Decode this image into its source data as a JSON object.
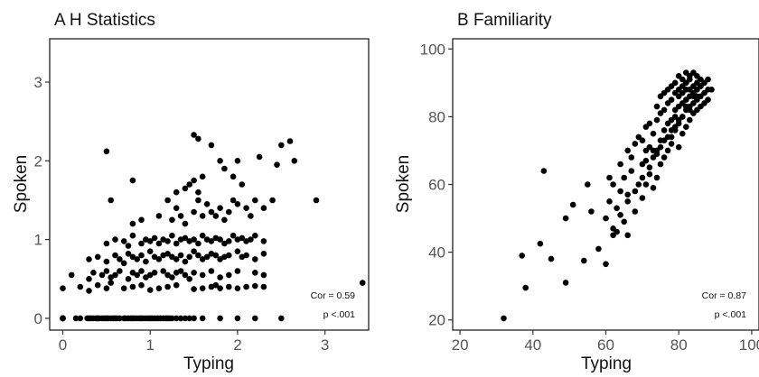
{
  "chart_data": [
    {
      "type": "scatter",
      "title": "A  H Statistics",
      "xlabel": "Typing",
      "ylabel": "Spoken",
      "xlim": [
        -0.15,
        3.5
      ],
      "ylim": [
        -0.15,
        3.55
      ],
      "xticks": [
        "0",
        "1",
        "2",
        "3"
      ],
      "yticks": [
        "0",
        "1",
        "2",
        "3"
      ],
      "grid": false,
      "annotations": [
        "Cor = 0.59",
        "p  <.001"
      ],
      "x": [
        0,
        0,
        0,
        0,
        0,
        0.15,
        0.2,
        0.28,
        0.3,
        0.32,
        0.35,
        0.38,
        0.4,
        0.42,
        0.45,
        0.48,
        0.5,
        0.52,
        0.55,
        0.58,
        0.6,
        0.62,
        0.65,
        0.7,
        0.72,
        0.75,
        0.78,
        0.8,
        0.82,
        0.85,
        0.88,
        0.9,
        0.92,
        0.95,
        0.98,
        1.0,
        1.02,
        1.05,
        1.08,
        1.1,
        1.12,
        1.15,
        1.18,
        1.2,
        1.22,
        1.25,
        1.3,
        1.35,
        1.4,
        1.45,
        1.5,
        1.6,
        1.8,
        2.0,
        2.2,
        2.5,
        0,
        0.2,
        0.3,
        0.4,
        0.5,
        0.55,
        0.7,
        0.8,
        0.9,
        1.0,
        1.1,
        1.2,
        1.3,
        1.5,
        1.6,
        1.7,
        1.75,
        1.8,
        1.9,
        2.0,
        2.1,
        2.2,
        2.3,
        0.1,
        0.3,
        0.35,
        0.45,
        0.5,
        0.55,
        0.6,
        0.65,
        0.75,
        0.8,
        0.85,
        0.9,
        0.95,
        1.0,
        1.05,
        1.15,
        1.2,
        1.25,
        1.3,
        1.35,
        1.4,
        1.45,
        1.5,
        1.6,
        1.7,
        1.8,
        1.9,
        2.0,
        2.2,
        2.3,
        0.3,
        0.4,
        0.5,
        0.6,
        0.65,
        0.7,
        0.75,
        0.8,
        0.85,
        0.9,
        0.95,
        1.0,
        1.05,
        1.1,
        1.15,
        1.2,
        1.25,
        1.3,
        1.35,
        1.4,
        1.45,
        1.5,
        1.55,
        1.6,
        1.65,
        1.7,
        1.75,
        1.8,
        1.85,
        1.9,
        2.0,
        2.05,
        2.1,
        2.2,
        2.3,
        0.5,
        0.6,
        0.7,
        0.75,
        0.8,
        0.9,
        0.95,
        1.0,
        1.05,
        1.1,
        1.15,
        1.2,
        1.25,
        1.3,
        1.35,
        1.4,
        1.45,
        1.5,
        1.55,
        1.6,
        1.65,
        1.7,
        1.75,
        1.8,
        1.85,
        1.9,
        1.95,
        2.0,
        2.05,
        2.1,
        2.15,
        2.2,
        2.3,
        0.55,
        0.8,
        0.9,
        1.1,
        1.2,
        1.25,
        1.3,
        1.35,
        1.4,
        1.5,
        1.55,
        1.6,
        1.65,
        1.7,
        1.75,
        1.8,
        1.85,
        1.9,
        1.95,
        2.0,
        2.1,
        2.15,
        2.2,
        2.3,
        2.4,
        1.3,
        1.4,
        1.45,
        1.5,
        1.55,
        1.6,
        1.7,
        1.8,
        1.85,
        1.95,
        2.0,
        2.05,
        2.25,
        2.5,
        2.6,
        2.65,
        2.9,
        3.43
      ],
      "y": [
        0,
        0,
        0,
        0,
        0,
        0,
        0,
        0,
        0,
        0,
        0,
        0,
        0,
        0,
        0,
        0,
        0,
        0,
        0,
        0,
        0,
        0,
        0,
        0,
        0,
        0,
        0,
        0,
        0,
        0,
        0,
        0,
        0,
        0,
        0,
        0,
        0,
        0,
        0,
        0,
        0,
        0,
        0,
        0,
        0,
        0,
        0,
        0,
        0,
        0,
        0,
        0,
        0,
        0,
        0,
        0,
        0.38,
        0.4,
        0.35,
        0.42,
        0.38,
        0.45,
        0.38,
        0.4,
        0.42,
        0.36,
        0.38,
        0.4,
        0.42,
        0.37,
        0.38,
        0.4,
        0.42,
        0.38,
        0.4,
        0.38,
        0.4,
        0.41,
        0.4,
        0.55,
        0.5,
        0.58,
        0.55,
        0.6,
        0.52,
        0.55,
        0.6,
        0.5,
        0.58,
        0.55,
        0.6,
        0.52,
        0.55,
        0.58,
        0.6,
        0.55,
        0.52,
        0.58,
        0.6,
        0.55,
        0.5,
        0.58,
        0.55,
        0.6,
        0.52,
        0.55,
        0.6,
        0.58,
        0.55,
        0.75,
        0.78,
        0.72,
        0.8,
        0.75,
        0.7,
        0.82,
        0.78,
        0.75,
        0.8,
        0.72,
        0.85,
        0.78,
        0.75,
        0.8,
        0.82,
        0.78,
        0.75,
        0.8,
        0.72,
        0.78,
        0.85,
        0.8,
        0.75,
        0.78,
        0.82,
        0.8,
        0.75,
        0.78,
        0.8,
        0.85,
        0.78,
        0.8,
        0.75,
        0.82,
        0.95,
        1.0,
        0.98,
        0.92,
        1.05,
        0.95,
        1.0,
        0.98,
        1.02,
        0.95,
        1.0,
        0.98,
        1.05,
        0.95,
        1.0,
        1.02,
        0.98,
        1.0,
        0.95,
        1.05,
        1.0,
        0.98,
        1.02,
        1.0,
        0.95,
        0.98,
        1.05,
        1.0,
        1.02,
        0.98,
        1.0,
        1.05,
        0.98,
        1.5,
        1.2,
        1.25,
        1.3,
        1.5,
        1.25,
        1.4,
        1.3,
        1.2,
        1.35,
        1.5,
        1.3,
        1.45,
        1.35,
        1.3,
        1.4,
        1.25,
        1.35,
        1.5,
        1.45,
        1.4,
        1.3,
        1.5,
        1.4,
        1.5,
        1.6,
        1.65,
        1.7,
        1.75,
        1.6,
        1.8,
        2.2,
        2.0,
        1.9,
        1.8,
        2.0,
        1.7,
        2.05,
        2.2,
        2.25,
        2.0,
        1.5,
        0.45
      ],
      "extra_points": {
        "x": [
          0.5,
          1.5,
          1.55,
          0.8,
          2.45
        ],
        "y": [
          2.12,
          2.33,
          2.28,
          1.75,
          1.95
        ]
      }
    },
    {
      "type": "scatter",
      "title": "B  Familiarity",
      "xlabel": "Typing",
      "ylabel": "Spoken",
      "xlim": [
        18,
        102
      ],
      "ylim": [
        17,
        103
      ],
      "xticks": [
        "20",
        "40",
        "60",
        "80",
        "100"
      ],
      "yticks": [
        "20",
        "40",
        "60",
        "80",
        "100"
      ],
      "grid": false,
      "annotations": [
        "Cor = 0.87",
        "p  <.001"
      ],
      "x": [
        32,
        37,
        38,
        42,
        43,
        45,
        49,
        49,
        51,
        54,
        55,
        56,
        58,
        60,
        61,
        61,
        62,
        62,
        63,
        63,
        64,
        64,
        65,
        65,
        66,
        66,
        66,
        67,
        67,
        68,
        68,
        69,
        69,
        70,
        70,
        70,
        71,
        71,
        71,
        72,
        72,
        72,
        73,
        73,
        73,
        74,
        74,
        74,
        74,
        75,
        75,
        75,
        75,
        76,
        76,
        76,
        76,
        77,
        77,
        77,
        77,
        78,
        78,
        78,
        78,
        78,
        79,
        79,
        79,
        79,
        79,
        80,
        80,
        80,
        80,
        80,
        80,
        81,
        81,
        81,
        81,
        81,
        81,
        82,
        82,
        82,
        82,
        82,
        82,
        83,
        83,
        83,
        83,
        83,
        83,
        84,
        84,
        84,
        84,
        84,
        85,
        85,
        85,
        85,
        85,
        86,
        86,
        86,
        86,
        87,
        87,
        87,
        88,
        88,
        88,
        89,
        75,
        77,
        79,
        81,
        83,
        85,
        72,
        74,
        76,
        78,
        80,
        82,
        84,
        86,
        70,
        68,
        66,
        64,
        62,
        60,
        71,
        73
      ],
      "y": [
        20.5,
        39,
        29.5,
        42.5,
        64,
        38,
        31,
        50,
        54,
        37.5,
        60,
        52,
        41,
        36.5,
        55,
        62,
        45,
        60,
        46,
        53,
        58,
        66,
        49,
        62,
        57,
        70,
        45,
        64,
        68,
        52,
        72,
        60,
        74,
        56,
        66,
        73,
        60,
        70,
        77,
        63,
        71,
        78,
        59,
        68,
        75,
        62,
        70,
        79,
        83,
        66,
        73,
        81,
        86,
        68,
        76,
        82,
        87,
        70,
        78,
        84,
        88,
        72,
        79,
        85,
        89,
        74,
        76,
        82,
        87,
        80,
        90,
        71,
        78,
        83,
        86,
        88,
        92,
        75,
        80,
        84,
        87,
        89,
        91,
        77,
        82,
        85,
        88,
        90,
        93,
        79,
        83,
        86,
        88,
        91,
        92,
        81,
        84,
        87,
        89,
        93,
        82,
        85,
        88,
        90,
        92,
        83,
        86,
        89,
        91,
        84,
        87,
        90,
        85,
        88,
        91,
        88,
        71,
        74,
        77,
        80,
        82,
        86,
        65,
        69,
        73,
        76,
        79,
        83,
        86,
        89,
        62,
        58,
        55,
        51,
        47,
        50,
        67,
        70
      ]
    }
  ]
}
